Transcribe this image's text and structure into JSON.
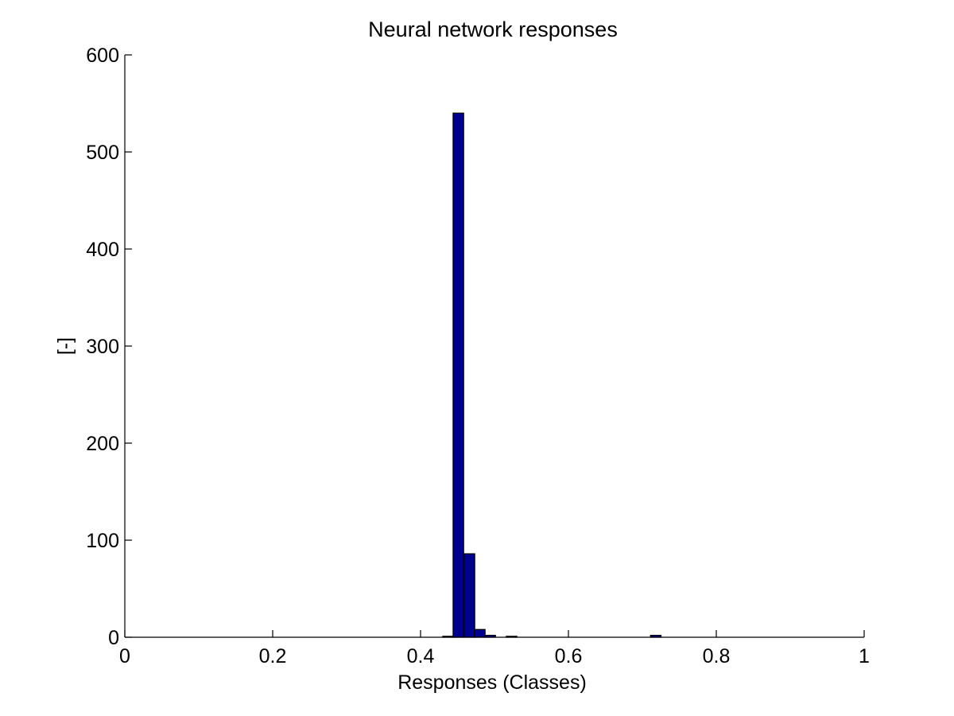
{
  "chart_data": {
    "type": "bar",
    "title": "Neural network responses",
    "xlabel": "Responses (Classes)",
    "ylabel": "[-]",
    "xlim": [
      0,
      1
    ],
    "ylim": [
      0,
      600
    ],
    "xticks": [
      0,
      0.2,
      0.4,
      0.6,
      0.8,
      1
    ],
    "xtick_labels": [
      "0",
      "0.2",
      "0.4",
      "0.6",
      "0.8",
      "1"
    ],
    "yticks": [
      0,
      100,
      200,
      300,
      400,
      500,
      600
    ],
    "ytick_labels": [
      "0",
      "100",
      "200",
      "300",
      "400",
      "500",
      "600"
    ],
    "bar_width": 0.0143,
    "bars": [
      {
        "x": 0.43,
        "value": 1
      },
      {
        "x": 0.444,
        "value": 540
      },
      {
        "x": 0.459,
        "value": 86
      },
      {
        "x": 0.473,
        "value": 8
      },
      {
        "x": 0.487,
        "value": 2
      },
      {
        "x": 0.516,
        "value": 1
      },
      {
        "x": 0.711,
        "value": 2
      }
    ],
    "bar_color": "#00008f",
    "edge_color": "#000000",
    "grid": false
  }
}
